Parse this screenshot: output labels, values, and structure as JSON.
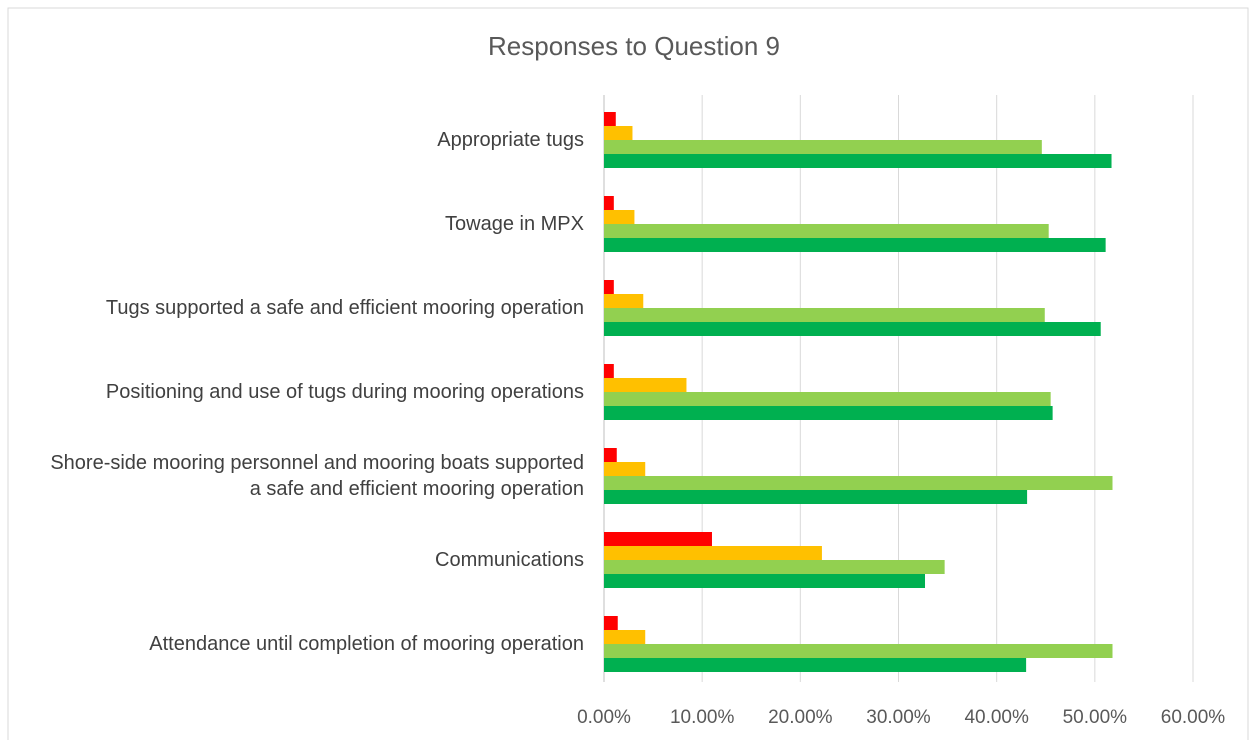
{
  "chart_data": {
    "type": "hbar",
    "title": "Responses to Question 9",
    "categories": [
      "Appropriate tugs",
      "Towage in MPX",
      "Tugs supported a safe and efficient mooring operation",
      "Positioning and use of tugs during mooring operations",
      "Shore-side mooring personnel and mooring boats supported a safe and efficient mooring operation",
      "Communications",
      "Attendance until completion of mooring operation"
    ],
    "series": [
      {
        "color": "#ff0000",
        "values": [
          1.2,
          1.0,
          1.0,
          1.0,
          1.3,
          11.0,
          1.4
        ]
      },
      {
        "color": "#ffc000",
        "values": [
          2.9,
          3.1,
          4.0,
          8.4,
          4.2,
          22.2,
          4.2
        ]
      },
      {
        "color": "#92d050",
        "values": [
          44.6,
          45.3,
          44.9,
          45.5,
          51.8,
          34.7,
          51.8
        ]
      },
      {
        "color": "#00b050",
        "values": [
          51.7,
          51.1,
          50.6,
          45.7,
          43.1,
          32.7,
          43.0
        ]
      }
    ],
    "xlim": [
      0,
      60
    ],
    "xticks": [
      {
        "value": 0,
        "label": "0.00%"
      },
      {
        "value": 10,
        "label": "10.00%"
      },
      {
        "value": 20,
        "label": "20.00%"
      },
      {
        "value": 30,
        "label": "30.00%"
      },
      {
        "value": 40,
        "label": "40.00%"
      },
      {
        "value": 50,
        "label": "50.00%"
      },
      {
        "value": 60,
        "label": "60.00%"
      }
    ],
    "grid": true
  }
}
